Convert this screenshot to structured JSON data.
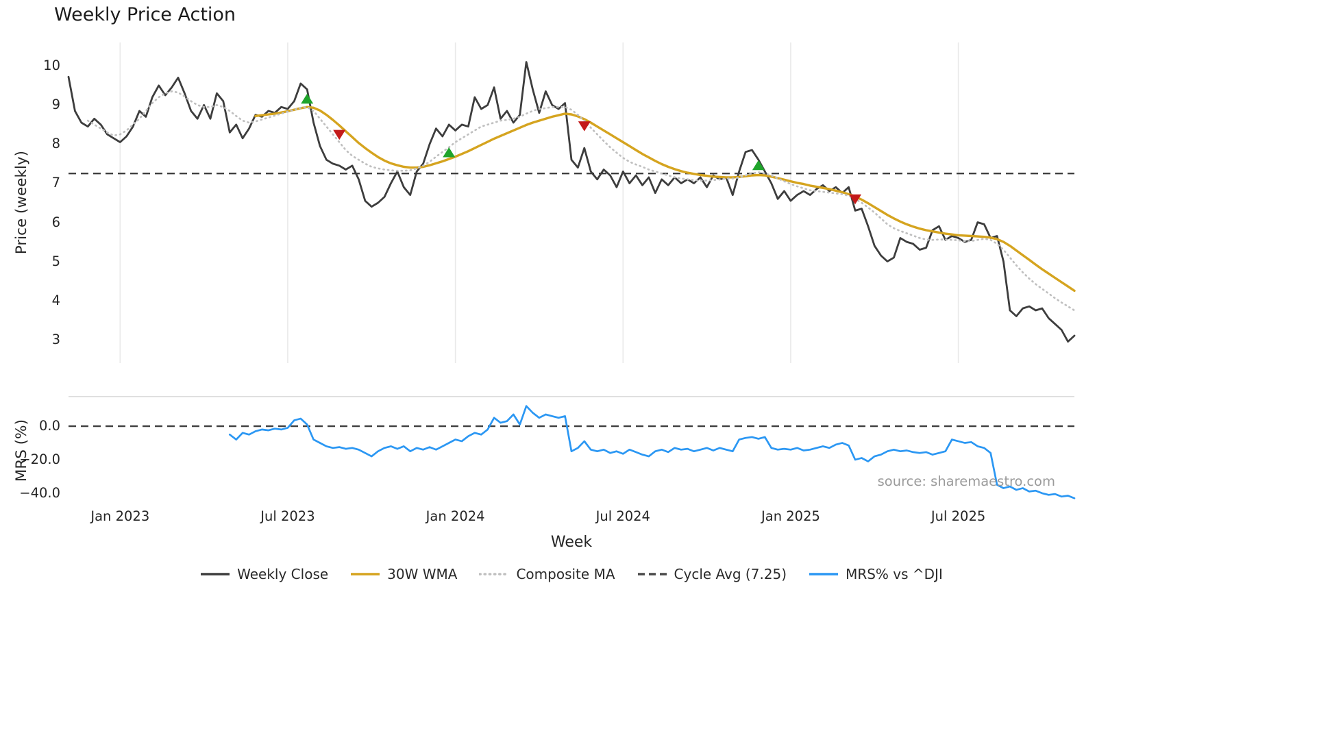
{
  "title": "Weekly Price Action",
  "source": "source: sharemaestro.com",
  "legend": [
    {
      "label": "Weekly Close",
      "color": "#3d3d3d",
      "style": "solid"
    },
    {
      "label": "30W WMA",
      "color": "#d5a41f",
      "style": "solid"
    },
    {
      "label": "Composite MA",
      "color": "#c0c0c0",
      "style": "dotted"
    },
    {
      "label": "Cycle Avg (7.25)",
      "color": "#4a4a4a",
      "style": "dashed"
    },
    {
      "label": "MRS% vs ^DJI",
      "color": "#2b97f3",
      "style": "solid"
    }
  ],
  "chart_data": {
    "type": "line",
    "xlabel": "Week",
    "xlim": [
      0,
      156
    ],
    "xticks": [
      {
        "v": 8,
        "label": "Jan 2023"
      },
      {
        "v": 34,
        "label": "Jul 2023"
      },
      {
        "v": 60,
        "label": "Jan 2024"
      },
      {
        "v": 86,
        "label": "Jul 2024"
      },
      {
        "v": 112,
        "label": "Jan 2025"
      },
      {
        "v": 138,
        "label": "Jul 2025"
      }
    ],
    "panels": {
      "price": {
        "ylabel": "Price (weekly)",
        "ylim": [
          2.4,
          10.6
        ],
        "yticks": [
          {
            "v": 10,
            "label": "10"
          },
          {
            "v": 9,
            "label": "9"
          },
          {
            "v": 8,
            "label": "8"
          },
          {
            "v": 7,
            "label": "7"
          },
          {
            "v": 6,
            "label": "6"
          },
          {
            "v": 5,
            "label": "5"
          },
          {
            "v": 4,
            "label": "4"
          },
          {
            "v": 3,
            "label": "3"
          }
        ],
        "hline": {
          "value": 7.25,
          "label": "Cycle Avg (7.25)",
          "color": "#3d3d3d",
          "style": "dashed"
        }
      },
      "mrs": {
        "ylabel": "MRS (%)",
        "ylim": [
          -47,
          18
        ],
        "yticks": [
          {
            "v": 0,
            "label": "0.0"
          },
          {
            "v": -20,
            "label": "−20.0"
          },
          {
            "v": -40,
            "label": "−40.0"
          }
        ],
        "hline": {
          "value": 0,
          "color": "#3d3d3d",
          "style": "dashed"
        }
      }
    },
    "series": [
      {
        "name": "Weekly Close",
        "panel": "price",
        "color": "#3d3d3d",
        "style": "solid",
        "width": 2.8,
        "values": [
          9.72,
          8.85,
          8.55,
          8.45,
          8.65,
          8.5,
          8.25,
          8.15,
          8.05,
          8.2,
          8.45,
          8.85,
          8.7,
          9.2,
          9.5,
          9.25,
          9.45,
          9.7,
          9.3,
          8.85,
          8.65,
          9.0,
          8.65,
          9.3,
          9.1,
          8.3,
          8.5,
          8.15,
          8.4,
          8.75,
          8.7,
          8.85,
          8.8,
          8.95,
          8.9,
          9.1,
          9.55,
          9.4,
          8.55,
          7.95,
          7.6,
          7.5,
          7.45,
          7.35,
          7.45,
          7.1,
          6.55,
          6.4,
          6.5,
          6.65,
          7.0,
          7.3,
          6.9,
          6.7,
          7.3,
          7.5,
          8.0,
          8.4,
          8.2,
          8.5,
          8.35,
          8.5,
          8.45,
          9.2,
          8.9,
          9.0,
          9.45,
          8.65,
          8.85,
          8.55,
          8.75,
          10.1,
          9.4,
          8.8,
          9.35,
          9.0,
          8.9,
          9.05,
          7.6,
          7.4,
          7.9,
          7.3,
          7.1,
          7.35,
          7.2,
          6.9,
          7.3,
          7.0,
          7.2,
          6.95,
          7.15,
          6.75,
          7.1,
          6.95,
          7.15,
          7.0,
          7.1,
          7.0,
          7.15,
          6.9,
          7.2,
          7.1,
          7.15,
          6.7,
          7.3,
          7.8,
          7.85,
          7.6,
          7.3,
          7.0,
          6.6,
          6.8,
          6.55,
          6.7,
          6.8,
          6.7,
          6.85,
          6.95,
          6.8,
          6.9,
          6.75,
          6.9,
          6.3,
          6.35,
          5.9,
          5.4,
          5.15,
          5.0,
          5.1,
          5.6,
          5.5,
          5.45,
          5.3,
          5.35,
          5.8,
          5.9,
          5.55,
          5.65,
          5.6,
          5.5,
          5.55,
          6.0,
          5.95,
          5.6,
          5.65,
          5.0,
          3.75,
          3.6,
          3.8,
          3.85,
          3.75,
          3.8,
          3.55,
          3.4,
          3.25,
          2.95,
          3.1
        ]
      },
      {
        "name": "30W WMA",
        "panel": "price",
        "color": "#d5a41f",
        "style": "solid",
        "width": 3.4,
        "values": [
          null,
          null,
          null,
          null,
          null,
          null,
          null,
          null,
          null,
          null,
          null,
          null,
          null,
          null,
          null,
          null,
          null,
          null,
          null,
          null,
          null,
          null,
          null,
          null,
          null,
          null,
          null,
          null,
          null,
          8.72,
          8.74,
          8.76,
          8.78,
          8.81,
          8.84,
          8.88,
          8.92,
          8.95,
          8.93,
          8.86,
          8.75,
          8.62,
          8.48,
          8.33,
          8.18,
          8.03,
          7.9,
          7.78,
          7.67,
          7.58,
          7.51,
          7.46,
          7.42,
          7.4,
          7.4,
          7.42,
          7.46,
          7.51,
          7.56,
          7.62,
          7.68,
          7.75,
          7.82,
          7.9,
          7.98,
          8.06,
          8.14,
          8.21,
          8.28,
          8.35,
          8.42,
          8.49,
          8.55,
          8.6,
          8.65,
          8.7,
          8.74,
          8.78,
          8.76,
          8.71,
          8.64,
          8.55,
          8.45,
          8.35,
          8.25,
          8.15,
          8.05,
          7.95,
          7.85,
          7.75,
          7.66,
          7.57,
          7.49,
          7.42,
          7.36,
          7.31,
          7.27,
          7.24,
          7.21,
          7.19,
          7.17,
          7.16,
          7.15,
          7.15,
          7.16,
          7.18,
          7.2,
          7.21,
          7.2,
          7.17,
          7.13,
          7.09,
          7.05,
          7.01,
          6.98,
          6.94,
          6.91,
          6.88,
          6.85,
          6.81,
          6.77,
          6.72,
          6.66,
          6.58,
          6.49,
          6.39,
          6.29,
          6.19,
          6.1,
          6.02,
          5.95,
          5.89,
          5.84,
          5.8,
          5.77,
          5.74,
          5.71,
          5.69,
          5.67,
          5.66,
          5.65,
          5.64,
          5.63,
          5.61,
          5.57,
          5.5,
          5.4,
          5.28,
          5.16,
          5.04,
          4.92,
          4.8,
          4.69,
          4.58,
          4.47,
          4.36,
          4.25
        ]
      },
      {
        "name": "Composite MA",
        "panel": "price",
        "color": "#c0c0c0",
        "style": "dotted",
        "width": 2.7,
        "values": [
          null,
          null,
          null,
          8.6,
          8.5,
          8.4,
          8.3,
          8.22,
          8.25,
          8.35,
          8.5,
          8.65,
          8.85,
          9.05,
          9.2,
          9.3,
          9.35,
          9.32,
          9.22,
          9.1,
          9.0,
          8.95,
          8.95,
          9.0,
          8.95,
          8.85,
          8.72,
          8.6,
          8.55,
          8.58,
          8.63,
          8.68,
          8.73,
          8.78,
          8.83,
          8.88,
          8.93,
          8.95,
          8.85,
          8.65,
          8.45,
          8.25,
          8.05,
          7.85,
          7.7,
          7.6,
          7.5,
          7.42,
          7.38,
          7.35,
          7.33,
          7.32,
          7.32,
          7.33,
          7.38,
          7.45,
          7.55,
          7.68,
          7.8,
          7.92,
          8.05,
          8.15,
          8.25,
          8.35,
          8.45,
          8.5,
          8.55,
          8.6,
          8.62,
          8.65,
          8.7,
          8.78,
          8.85,
          8.9,
          8.92,
          8.95,
          8.95,
          8.95,
          8.88,
          8.75,
          8.6,
          8.42,
          8.25,
          8.08,
          7.92,
          7.78,
          7.65,
          7.55,
          7.48,
          7.42,
          7.35,
          7.3,
          7.25,
          7.2,
          7.15,
          7.12,
          7.1,
          7.08,
          7.07,
          7.07,
          7.08,
          7.1,
          7.12,
          7.12,
          7.15,
          7.2,
          7.25,
          7.28,
          7.25,
          7.2,
          7.12,
          7.05,
          6.98,
          6.92,
          6.87,
          6.82,
          6.8,
          6.78,
          6.76,
          6.74,
          6.72,
          6.68,
          6.6,
          6.5,
          6.38,
          6.25,
          6.1,
          5.95,
          5.85,
          5.78,
          5.72,
          5.66,
          5.6,
          5.56,
          5.55,
          5.56,
          5.56,
          5.55,
          5.54,
          5.52,
          5.52,
          5.55,
          5.58,
          5.55,
          5.45,
          5.3,
          5.1,
          4.9,
          4.72,
          4.56,
          4.42,
          4.3,
          4.18,
          4.06,
          3.95,
          3.85,
          3.75
        ]
      },
      {
        "name": "MRS% vs ^DJI",
        "panel": "mrs",
        "color": "#2b97f3",
        "style": "solid",
        "width": 2.7,
        "values": [
          null,
          null,
          null,
          null,
          null,
          null,
          null,
          null,
          null,
          null,
          null,
          null,
          null,
          null,
          null,
          null,
          null,
          null,
          null,
          null,
          null,
          null,
          null,
          null,
          null,
          -5,
          -8,
          -4,
          -5,
          -3,
          -2,
          -2.5,
          -1.5,
          -2,
          -1,
          3.5,
          4.5,
          1,
          -8,
          -10,
          -12,
          -13,
          -12.5,
          -13.5,
          -13,
          -14,
          -16,
          -18,
          -15,
          -13,
          -12,
          -13.5,
          -12,
          -15,
          -13,
          -14,
          -12.5,
          -14,
          -12,
          -10,
          -8,
          -9,
          -6,
          -4,
          -5,
          -2,
          5,
          2,
          3,
          7,
          1,
          12,
          8,
          5,
          7,
          6,
          5,
          6,
          -15,
          -13,
          -9,
          -14,
          -15,
          -14,
          -16,
          -15,
          -16.5,
          -14,
          -15.5,
          -17,
          -18,
          -15,
          -14,
          -15.5,
          -13,
          -14,
          -13.5,
          -15,
          -14,
          -13,
          -14.5,
          -13,
          -14,
          -15,
          -8,
          -7,
          -6.5,
          -7.5,
          -6.5,
          -13,
          -14,
          -13.5,
          -14,
          -13,
          -14.5,
          -14,
          -13,
          -12,
          -13,
          -11,
          -10,
          -11.5,
          -20,
          -19,
          -21,
          -18,
          -17,
          -15,
          -14,
          -15,
          -14.5,
          -15.5,
          -16,
          -15.5,
          -17,
          -16,
          -15,
          -8,
          -9,
          -10,
          -9.5,
          -12,
          -13,
          -16,
          -35,
          -37,
          -36,
          -38,
          -37,
          -39,
          -38.5,
          -40,
          -41,
          -40.5,
          -42,
          -41.5,
          -43
        ]
      }
    ],
    "signals": {
      "buy": {
        "color": "#1fa42b",
        "marker": "triangle-up",
        "points": [
          {
            "week": 37,
            "price": 9.15
          },
          {
            "week": 59,
            "price": 7.78
          },
          {
            "week": 107,
            "price": 7.45
          }
        ]
      },
      "sell": {
        "color": "#c41a1a",
        "marker": "triangle-down",
        "points": [
          {
            "week": 42,
            "price": 8.25
          },
          {
            "week": 80,
            "price": 8.47
          },
          {
            "week": 122,
            "price": 6.6
          }
        ]
      }
    }
  }
}
